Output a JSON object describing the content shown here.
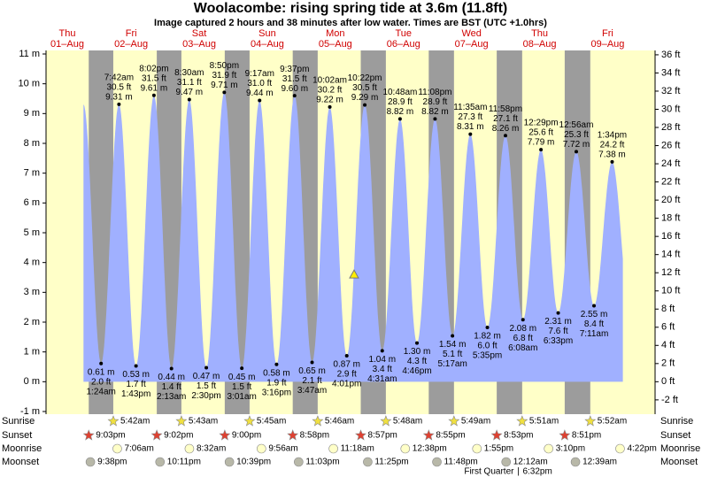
{
  "chart_data": {
    "type": "area",
    "title": "Woolacombe: rising  spring tide at 3.6m (11.8ft)",
    "subtitle": "Image captured 2 hours and 38 minutes after low water. Times are BST (UTC +1.0hrs)",
    "current_level_m": 3.6,
    "ylim": [
      -1,
      11
    ],
    "yticks": [
      {
        "value": -1,
        "label": "-1 m"
      },
      {
        "value": 0,
        "label": "0 m"
      },
      {
        "value": 1,
        "label": "1 m"
      },
      {
        "value": 2,
        "label": "2 m"
      },
      {
        "value": 3,
        "label": "3 m"
      },
      {
        "value": 4,
        "label": "4 m"
      },
      {
        "value": 5,
        "label": "5 m"
      },
      {
        "value": 6,
        "label": "6 m"
      },
      {
        "value": 7,
        "label": "7 m"
      },
      {
        "value": 8,
        "label": "8 m"
      },
      {
        "value": 9,
        "label": "9 m"
      },
      {
        "value": 10,
        "label": "10 m"
      },
      {
        "value": 11,
        "label": "11 m"
      }
    ],
    "y2lim": [
      -3.28,
      36.09
    ],
    "y2ticks": [
      {
        "value": -2,
        "label": "-2 ft"
      },
      {
        "value": 0,
        "label": "0 ft"
      },
      {
        "value": 2,
        "label": "2 ft"
      },
      {
        "value": 4,
        "label": "4 ft"
      },
      {
        "value": 6,
        "label": "6 ft"
      },
      {
        "value": 8,
        "label": "8 ft"
      },
      {
        "value": 10,
        "label": "10 ft"
      },
      {
        "value": 12,
        "label": "12 ft"
      },
      {
        "value": 14,
        "label": "14 ft"
      },
      {
        "value": 16,
        "label": "16 ft"
      },
      {
        "value": 18,
        "label": "18 ft"
      },
      {
        "value": 20,
        "label": "20 ft"
      },
      {
        "value": 22,
        "label": "22 ft"
      },
      {
        "value": 24,
        "label": "24 ft"
      },
      {
        "value": 26,
        "label": "26 ft"
      },
      {
        "value": 28,
        "label": "28 ft"
      },
      {
        "value": 30,
        "label": "30 ft"
      },
      {
        "value": 32,
        "label": "32 ft"
      },
      {
        "value": 34,
        "label": "34 ft"
      },
      {
        "value": 36,
        "label": "36 ft"
      }
    ],
    "colors": {
      "day": "#ffffc8",
      "night": "#9c9c9c",
      "water": "#a0b0ff"
    },
    "row_labels": [
      "Sunrise",
      "Sunset",
      "Moonrise",
      "Moonset"
    ],
    "days": [
      {
        "weekday": "Thu",
        "date": "01‒Aug",
        "tides": [],
        "sunrise": null,
        "sunset": "9:03pm",
        "moonrise": null,
        "moonset": "9:38pm"
      },
      {
        "weekday": "Fri",
        "date": "02‒Aug",
        "tides": [
          {
            "time": "1:24am",
            "m": 0.61,
            "m_label": "0.61 m",
            "ft": "2.0 ft"
          },
          {
            "time": "7:42am",
            "m": 9.31,
            "m_label": "9.31 m",
            "ft": "30.5 ft"
          },
          {
            "time": "1:43pm",
            "m": 0.53,
            "m_label": "0.53 m",
            "ft": "1.7 ft"
          },
          {
            "time": "8:02pm",
            "m": 9.61,
            "m_label": "9.61 m",
            "ft": "31.5 ft"
          }
        ],
        "sunrise": "5:42am",
        "sunset": "9:02pm",
        "moonrise": "7:06am",
        "moonset": "10:11pm"
      },
      {
        "weekday": "Sat",
        "date": "03‒Aug",
        "tides": [
          {
            "time": "2:13am",
            "m": 0.44,
            "m_label": "0.44 m",
            "ft": "1.4 ft"
          },
          {
            "time": "8:30am",
            "m": 9.47,
            "m_label": "9.47 m",
            "ft": "31.1 ft"
          },
          {
            "time": "2:30pm",
            "m": 0.47,
            "m_label": "0.47 m",
            "ft": "1.5 ft"
          },
          {
            "time": "8:50pm",
            "m": 9.71,
            "m_label": "9.71 m",
            "ft": "31.9 ft"
          }
        ],
        "sunrise": "5:43am",
        "sunset": "9:00pm",
        "moonrise": "8:32am",
        "moonset": "10:39pm"
      },
      {
        "weekday": "Sun",
        "date": "04‒Aug",
        "tides": [
          {
            "time": "3:01am",
            "m": 0.45,
            "m_label": "0.45 m",
            "ft": "1.5 ft"
          },
          {
            "time": "9:17am",
            "m": 9.44,
            "m_label": "9.44 m",
            "ft": "31.0 ft"
          },
          {
            "time": "3:16pm",
            "m": 0.58,
            "m_label": "0.58 m",
            "ft": "1.9 ft"
          },
          {
            "time": "9:37pm",
            "m": 9.6,
            "m_label": "9.60 m",
            "ft": "31.5 ft"
          }
        ],
        "sunrise": "5:45am",
        "sunset": "8:58pm",
        "moonrise": "9:56am",
        "moonset": "11:03pm"
      },
      {
        "weekday": "Mon",
        "date": "05‒Aug",
        "tides": [
          {
            "time": "3:47am",
            "m": 0.65,
            "m_label": "0.65 m",
            "ft": "2.1 ft"
          },
          {
            "time": "10:02am",
            "m": 9.22,
            "m_label": "9.22 m",
            "ft": "30.2 ft"
          },
          {
            "time": "4:01pm",
            "m": 0.87,
            "m_label": "0.87 m",
            "ft": "2.9 ft"
          },
          {
            "time": "10:22pm",
            "m": 9.29,
            "m_label": "9.29 m",
            "ft": "30.5 ft"
          }
        ],
        "sunrise": "5:46am",
        "sunset": "8:57pm",
        "moonrise": "11:18am",
        "moonset": "11:25pm"
      },
      {
        "weekday": "Tue",
        "date": "06‒Aug",
        "tides": [
          {
            "time": "4:31am",
            "m": 1.04,
            "m_label": "1.04 m",
            "ft": "3.4 ft"
          },
          {
            "time": "10:48am",
            "m": 8.82,
            "m_label": "8.82 m",
            "ft": "28.9 ft"
          },
          {
            "time": "4:46pm",
            "m": 1.3,
            "m_label": "1.30 m",
            "ft": "4.3 ft"
          },
          {
            "time": "11:08pm",
            "m": 8.82,
            "m_label": "8.82 m",
            "ft": "28.9 ft"
          }
        ],
        "sunrise": "5:48am",
        "sunset": "8:55pm",
        "moonrise": "12:38pm",
        "moonset": "11:48pm"
      },
      {
        "weekday": "Wed",
        "date": "07‒Aug",
        "tides": [
          {
            "time": "5:17am",
            "m": 1.54,
            "m_label": "1.54 m",
            "ft": "5.1 ft"
          },
          {
            "time": "11:35am",
            "m": 8.31,
            "m_label": "8.31 m",
            "ft": "27.3 ft"
          },
          {
            "time": "5:35pm",
            "m": 1.82,
            "m_label": "1.82 m",
            "ft": "6.0 ft"
          },
          {
            "time": "11:58pm",
            "m": 8.26,
            "m_label": "8.26 m",
            "ft": "27.1 ft"
          }
        ],
        "sunrise": "5:49am",
        "sunset": "8:53pm",
        "moonrise": "1:55pm",
        "moonset": null
      },
      {
        "weekday": "Thu",
        "date": "08‒Aug",
        "tides": [
          {
            "time": "6:08am",
            "m": 2.08,
            "m_label": "2.08 m",
            "ft": "6.8 ft"
          },
          {
            "time": "12:29pm",
            "m": 7.79,
            "m_label": "7.79 m",
            "ft": "25.6 ft"
          },
          {
            "time": "6:33pm",
            "m": 2.31,
            "m_label": "2.31 m",
            "ft": "7.6 ft"
          }
        ],
        "sunrise": "5:51am",
        "sunset": "8:51pm",
        "moonrise": "3:10pm",
        "moonset": "12:12am",
        "moon_phase": "First Quarter",
        "moon_phase_time": "6:32pm"
      },
      {
        "weekday": "Fri",
        "date": "09‒Aug",
        "tides": [
          {
            "time": "12:56am",
            "m": 7.72,
            "m_label": "7.72 m",
            "ft": "25.3 ft"
          },
          {
            "time": "7:11am",
            "m": 2.55,
            "m_label": "2.55 m",
            "ft": "8.4 ft"
          },
          {
            "time": "1:34pm",
            "m": 7.38,
            "m_label": "7.38 m",
            "ft": "24.2 ft"
          }
        ],
        "sunrise": "5:52am",
        "sunset": null,
        "moonrise": "4:22pm",
        "moonset": "12:39am"
      }
    ]
  }
}
